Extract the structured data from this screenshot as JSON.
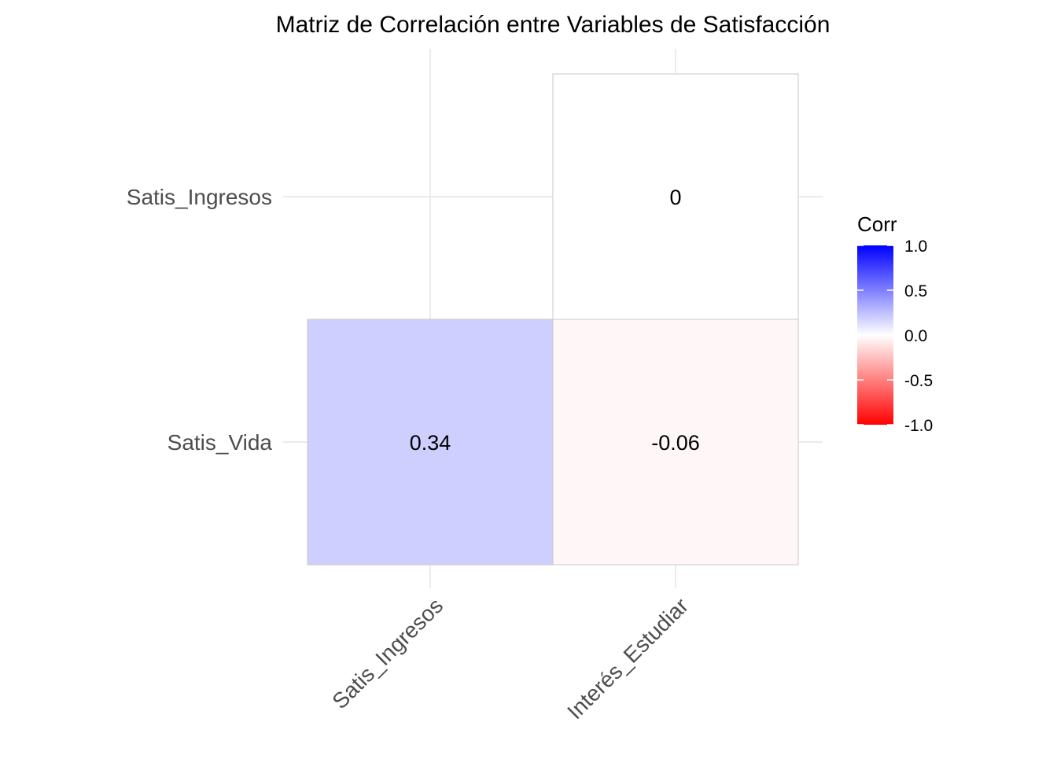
{
  "chart_data": {
    "type": "heatmap",
    "title": "Matriz de Correlación entre Variables de Satisfacción",
    "x_categories": [
      "Satis_Ingresos",
      "Interés_Estudiar"
    ],
    "y_categories": [
      "Satis_Vida",
      "Satis_Ingresos"
    ],
    "cells": [
      {
        "x": "Satis_Ingresos",
        "y": "Satis_Vida",
        "value": 0.34,
        "label": "0.34"
      },
      {
        "x": "Interés_Estudiar",
        "y": "Satis_Vida",
        "value": -0.06,
        "label": "-0.06"
      },
      {
        "x": "Interés_Estudiar",
        "y": "Satis_Ingresos",
        "value": 0,
        "label": "0"
      }
    ],
    "legend": {
      "title": "Corr",
      "placement": "right",
      "limits": [
        -1,
        1
      ],
      "ticks": [
        "1.0",
        "0.5",
        "0.0",
        "-0.5",
        "-1.0"
      ],
      "colors": {
        "low": "#ff0000",
        "mid": "#ffffff",
        "high": "#0000ff"
      }
    },
    "grid": true,
    "xlabel": "",
    "ylabel": ""
  }
}
